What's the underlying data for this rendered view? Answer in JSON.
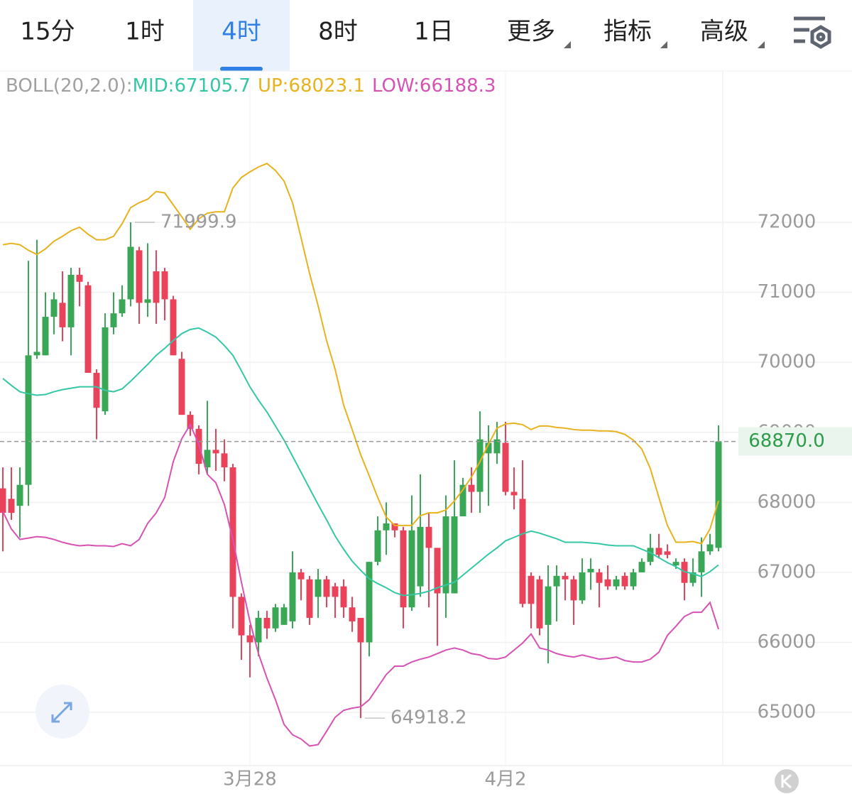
{
  "toolbar": {
    "tabs": [
      "15分",
      "1时",
      "4时",
      "8时",
      "1日",
      "更多",
      "指标",
      "高级"
    ],
    "active": 2
  },
  "chart_data": {
    "type": "candlestick",
    "indicator_header": {
      "label": "BOLL(20,2.0):",
      "items": [
        "MID:67105.7",
        "UP:68023.1",
        "LOW:66188.3"
      ]
    },
    "categories": [
      null,
      null,
      null,
      null,
      null,
      null,
      null,
      null,
      null,
      null,
      null,
      null,
      null,
      null,
      null,
      null,
      null,
      null,
      null,
      null,
      null,
      null,
      null,
      null,
      null,
      null,
      null,
      null,
      null,
      "3月28",
      null,
      null,
      null,
      null,
      null,
      null,
      null,
      null,
      null,
      null,
      null,
      null,
      null,
      null,
      null,
      null,
      null,
      null,
      null,
      null,
      null,
      null,
      null,
      null,
      null,
      null,
      null,
      null,
      null,
      "4月2",
      null,
      null,
      null,
      null,
      null,
      null,
      null,
      null,
      null,
      null,
      null,
      null,
      null,
      null,
      null,
      null,
      null,
      null,
      null,
      null,
      null,
      null,
      null,
      null,
      null
    ],
    "open": [
      68200,
      68050,
      67950,
      68250,
      70100,
      70100,
      70650,
      70850,
      70500,
      71250,
      71100,
      69850,
      69300,
      70500,
      70700,
      70900,
      71600,
      70850,
      71300,
      71300,
      70900,
      70050,
      69250,
      69050,
      68500,
      68750,
      68700,
      68500,
      66650,
      66100,
      66000,
      66350,
      66200,
      66250,
      66300,
      67000,
      66900,
      66650,
      66900,
      66800,
      66800,
      66500,
      66350,
      66000,
      67150,
      67600,
      67700,
      67600,
      66500,
      66800,
      67650,
      67350,
      66700,
      66700,
      67800,
      68250,
      68150,
      68700,
      68700,
      68850,
      68150,
      68050,
      66950,
      66900,
      66250,
      66800,
      66950,
      66900,
      66600,
      67000,
      67000,
      66900,
      66800,
      66950,
      66800,
      67000,
      67150,
      67350,
      67300,
      67100,
      67150,
      66850,
      67000,
      67300,
      67350
    ],
    "high": [
      68500,
      68500,
      68500,
      71450,
      71750,
      71000,
      71000,
      71300,
      71350,
      71350,
      71150,
      69900,
      70700,
      71000,
      71100,
      71999.9,
      71650,
      71700,
      71600,
      71350,
      70950,
      70150,
      69300,
      69100,
      69450,
      69050,
      68900,
      68550,
      66700,
      66250,
      66450,
      66450,
      66550,
      66550,
      67300,
      67050,
      66950,
      67050,
      66950,
      66850,
      66900,
      66650,
      66350,
      67150,
      67800,
      68000,
      67700,
      67650,
      68100,
      68400,
      67850,
      67350,
      68100,
      68600,
      68350,
      68500,
      69300,
      69100,
      69150,
      69150,
      68500,
      68600,
      67000,
      66950,
      67100,
      67100,
      67000,
      66950,
      67200,
      67200,
      67050,
      67100,
      66950,
      67000,
      67050,
      67200,
      67550,
      67550,
      67400,
      67200,
      67200,
      67200,
      67500,
      67550,
      69100
    ],
    "low": [
      67300,
      67750,
      67500,
      67950,
      70050,
      70100,
      70400,
      70300,
      70100,
      70800,
      69850,
      68900,
      69250,
      70400,
      70650,
      70800,
      70550,
      70650,
      70550,
      70600,
      70100,
      69250,
      68950,
      68400,
      68400,
      68450,
      68300,
      66200,
      65750,
      65500,
      65800,
      66050,
      66150,
      66250,
      66200,
      66600,
      66250,
      66350,
      66500,
      66350,
      66350,
      66150,
      64918.2,
      65800,
      67100,
      67250,
      67500,
      66200,
      66450,
      66650,
      66500,
      65950,
      66350,
      66700,
      67800,
      67850,
      67850,
      67950,
      68550,
      68100,
      67900,
      66500,
      66200,
      66100,
      65700,
      66300,
      66600,
      66250,
      66550,
      66750,
      66500,
      66750,
      66750,
      66750,
      66750,
      67000,
      67100,
      67200,
      67200,
      67050,
      66600,
      66800,
      66650,
      67250,
      67300
    ],
    "close": [
      67850,
      67850,
      68250,
      70100,
      70150,
      70650,
      70900,
      70500,
      71250,
      71150,
      69850,
      69350,
      70500,
      70700,
      70900,
      71650,
      70850,
      70900,
      70850,
      70900,
      70100,
      69250,
      69050,
      68550,
      68750,
      68700,
      68500,
      66650,
      66100,
      66000,
      66350,
      66200,
      66500,
      66500,
      67000,
      66900,
      66350,
      66900,
      66650,
      66650,
      66500,
      66300,
      66000,
      67150,
      67600,
      67700,
      67600,
      66500,
      67600,
      67650,
      67350,
      66700,
      67800,
      67800,
      68250,
      68150,
      68900,
      68850,
      68900,
      68150,
      68100,
      66550,
      66550,
      66200,
      66800,
      66950,
      66900,
      66600,
      67000,
      67050,
      66850,
      66800,
      66900,
      66800,
      67000,
      67150,
      67350,
      67250,
      67250,
      67150,
      66850,
      67000,
      67300,
      67400,
      68870
    ],
    "up_color": "#3aa757",
    "down_color": "#e8435a",
    "series": [
      {
        "name": "UP",
        "color": "#e8b21e",
        "values": [
          71680,
          71700,
          71680,
          71600,
          71540,
          71620,
          71730,
          71800,
          71880,
          71930,
          71830,
          71750,
          71750,
          71800,
          71980,
          72210,
          72280,
          72330,
          72440,
          72420,
          72250,
          72080,
          71900,
          72050,
          72130,
          72150,
          72150,
          72490,
          72640,
          72720,
          72790,
          72840,
          72740,
          72590,
          72280,
          71780,
          71270,
          70810,
          70310,
          69900,
          69390,
          69040,
          68680,
          68380,
          68070,
          67790,
          67670,
          67670,
          67670,
          67810,
          67850,
          67850,
          67890,
          68020,
          68180,
          68360,
          68580,
          68830,
          69060,
          69120,
          69130,
          69110,
          69040,
          69090,
          69090,
          69070,
          69060,
          69040,
          69030,
          69030,
          69020,
          69020,
          69010,
          68970,
          68890,
          68760,
          68480,
          68070,
          67670,
          67430,
          67430,
          67440,
          67410,
          67620,
          68023.1
        ]
      },
      {
        "name": "MID",
        "color": "#35c7a5",
        "values": [
          69770,
          69670,
          69580,
          69550,
          69530,
          69540,
          69580,
          69610,
          69630,
          69650,
          69650,
          69650,
          69600,
          69580,
          69620,
          69730,
          69850,
          69970,
          70100,
          70200,
          70310,
          70410,
          70470,
          70490,
          70430,
          70360,
          70240,
          70100,
          69880,
          69650,
          69460,
          69290,
          69090,
          68890,
          68660,
          68430,
          68200,
          67970,
          67750,
          67520,
          67330,
          67160,
          67030,
          66910,
          66840,
          66780,
          66710,
          66670,
          66680,
          66700,
          66730,
          66780,
          66820,
          66860,
          66960,
          67060,
          67160,
          67260,
          67350,
          67450,
          67500,
          67550,
          67590,
          67560,
          67520,
          67480,
          67430,
          67430,
          67430,
          67420,
          67410,
          67390,
          67380,
          67380,
          67380,
          67330,
          67280,
          67210,
          67140,
          67080,
          67010,
          66980,
          66940,
          67010,
          67105.7
        ]
      },
      {
        "name": "LOW",
        "color": "#d652b4",
        "values": [
          67870,
          67620,
          67470,
          67490,
          67510,
          67500,
          67470,
          67430,
          67400,
          67380,
          67390,
          67380,
          67380,
          67370,
          67410,
          67380,
          67470,
          67700,
          67850,
          68070,
          68580,
          68910,
          69110,
          68830,
          68400,
          68280,
          67970,
          67470,
          66860,
          66300,
          65840,
          65490,
          65180,
          64830,
          64680,
          64620,
          64520,
          64540,
          64730,
          64930,
          65030,
          65060,
          65080,
          65180,
          65360,
          65540,
          65660,
          65660,
          65720,
          65760,
          65790,
          65840,
          65890,
          65920,
          65890,
          65840,
          65820,
          65770,
          65760,
          65790,
          65890,
          65990,
          66120,
          65920,
          65890,
          65840,
          65810,
          65790,
          65820,
          65790,
          65760,
          65770,
          65790,
          65740,
          65720,
          65720,
          65760,
          65860,
          66100,
          66230,
          66370,
          66430,
          66430,
          66570,
          66188.3
        ]
      }
    ],
    "header_color": "#a0a0a0",
    "ylim": [
      64240,
      73755
    ],
    "yticks": [
      65000,
      66000,
      67000,
      68000,
      69000,
      70000,
      71000,
      72000
    ],
    "grid": true,
    "last_price": {
      "value": 68870,
      "label": "68870.0"
    }
  }
}
